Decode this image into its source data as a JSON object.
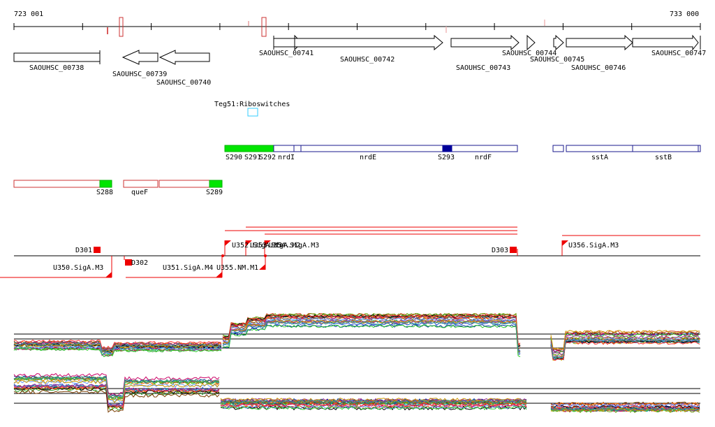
{
  "ruler": {
    "start_label": "723 001",
    "end_label": "733 000"
  },
  "genes_plus": [
    {
      "name": "SAOUHSC_00741"
    },
    {
      "name": "SAOUHSC_00742"
    },
    {
      "name": "SAOUHSC_00743"
    },
    {
      "name": "SAOUHSC_00744"
    },
    {
      "name": "SAOUHSC_00745"
    },
    {
      "name": "SAOUHSC_00746"
    },
    {
      "name": "SAOUHSC_00747"
    }
  ],
  "genes_minus": [
    {
      "name": "SAOUHSC_00738"
    },
    {
      "name": "SAOUHSC_00739"
    },
    {
      "name": "SAOUHSC_00740"
    }
  ],
  "riboswitch": {
    "label": "Teg51:Riboswitches"
  },
  "segments_plus": {
    "labels": [
      "S290",
      "S291",
      "S292",
      "nrdI",
      "nrdE",
      "S293",
      "nrdF",
      "sstA",
      "sstB"
    ]
  },
  "segments_minus": {
    "labels": [
      "S288",
      "queF",
      "S289"
    ]
  },
  "upshifts": {
    "labels": [
      "D301",
      "D302",
      "D303",
      "U350.SigA.M3",
      "U351.SigA.M4",
      "U355.NM.M1",
      "U352.SigA.M3",
      "U353.SigA.M2",
      "U354.SigA.M3",
      "U356.SigA.M3"
    ]
  },
  "colors": {
    "gene_outline": "#000000",
    "segment_outline": "#1a1a8c",
    "segment_green": "#00e600",
    "segment_darkblue": "#000099",
    "red": "#ee0000",
    "riboswitch": "#33ccff"
  }
}
